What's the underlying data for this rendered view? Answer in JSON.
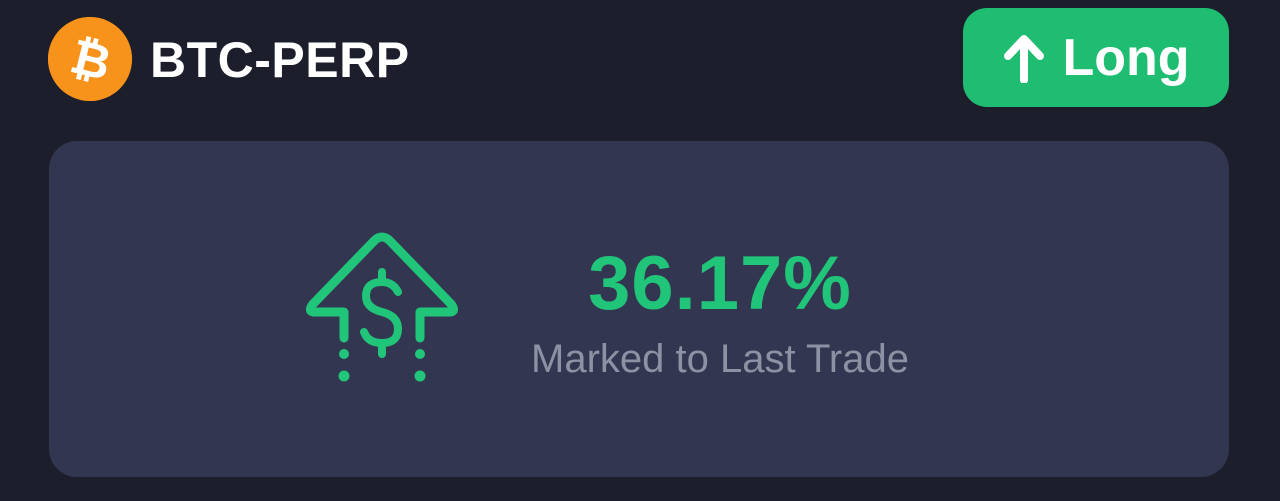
{
  "header": {
    "pair": "BTC-PERP",
    "coin_icon": "bitcoin-icon",
    "coin_color": "#f7931a"
  },
  "position": {
    "side_label": "Long",
    "side_icon": "arrow-up-icon",
    "side_color": "#1fbd72"
  },
  "pnl": {
    "value": "36.17%",
    "caption": "Marked to Last Trade",
    "icon": "dollar-growth-arrow-icon",
    "value_color": "#21c57a"
  }
}
